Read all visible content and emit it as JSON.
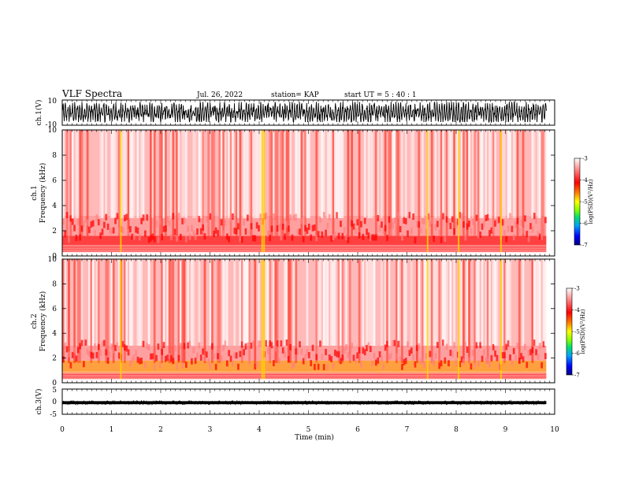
{
  "header": {
    "title": "VLF Spectra",
    "date": "Jul. 26, 2022",
    "station": "station= KAP",
    "start": "start UT =  5 : 40 : 1"
  },
  "colors": {
    "spectrogram_background": "#ffffff",
    "spectrogram_dominant": "#ff2a1a",
    "waveform_trace": "#000000",
    "colorbar_stops": [
      "#000080",
      "#0000ff",
      "#00a0ff",
      "#00e070",
      "#80ff00",
      "#ffff00",
      "#ff8000",
      "#ff0000",
      "#ff8080",
      "#ffffff"
    ]
  },
  "chart_data": [
    {
      "panel": "ch1-waveform",
      "type": "line",
      "ylabel": "ch.1(V)",
      "ylim": [
        -10,
        10
      ],
      "yticks": [
        "10",
        "-10"
      ],
      "xlim": [
        0,
        10
      ],
      "trace_extent_min": [
        0,
        9.83
      ],
      "description_of_values": "dense oscillation mostly between about -7 V and +8 V"
    },
    {
      "panel": "ch1-spectrogram",
      "type": "heatmap",
      "ylabel": "ch.1\nFrequency (kHz)",
      "ylim": [
        0,
        10
      ],
      "yticks": [
        "0",
        "2",
        "4",
        "6",
        "8",
        "10"
      ],
      "xlim": [
        0,
        10
      ],
      "data_extent_min": [
        0,
        9.83
      ],
      "colorbar": {
        "label": "log(PSD)(V²/Hz)",
        "range": [
          -7,
          -3
        ],
        "ticks": [
          "-3",
          "-4",
          "-5",
          "-6",
          "-7"
        ]
      },
      "bands": [
        {
          "freq_khz": [
            0.3,
            1.0
          ],
          "log_psd": -4.3
        },
        {
          "freq_khz": [
            1.0,
            1.6
          ],
          "log_psd": -4.6
        },
        {
          "freq_khz": [
            1.6,
            3.2
          ],
          "log_psd": -4.0
        },
        {
          "freq_khz": [
            3.2,
            10.0
          ],
          "log_psd": -3.6
        }
      ],
      "bright_vertical_events_min": [
        1.19,
        4.06,
        4.1,
        7.42,
        8.05,
        8.91
      ]
    },
    {
      "panel": "ch2-spectrogram",
      "type": "heatmap",
      "ylabel": "ch.2\nFrequency (kHz)",
      "ylim": [
        0,
        10
      ],
      "yticks": [
        "0",
        "2",
        "4",
        "6",
        "8",
        "10"
      ],
      "xlim": [
        0,
        10
      ],
      "data_extent_min": [
        0,
        9.83
      ],
      "colorbar": {
        "label": "log(PSD)(V²/Hz)",
        "range": [
          -7,
          -3
        ],
        "ticks": [
          "-3",
          "-4",
          "-5",
          "-6",
          "-7"
        ]
      },
      "bands": [
        {
          "freq_khz": [
            0.3,
            0.8
          ],
          "log_psd": -4.3
        },
        {
          "freq_khz": [
            0.8,
            1.8
          ],
          "log_psd": -4.7
        },
        {
          "freq_khz": [
            1.8,
            3.0
          ],
          "log_psd": -4.0
        },
        {
          "freq_khz": [
            3.0,
            10.0
          ],
          "log_psd": -3.6
        }
      ],
      "bright_vertical_events_min": [
        1.19,
        4.06,
        4.1,
        7.42,
        8.05,
        8.91
      ]
    },
    {
      "panel": "ch3-waveform",
      "type": "line",
      "ylabel": "ch.3(V)",
      "ylim": [
        -5,
        5
      ],
      "yticks": [
        "5",
        "0",
        "-5"
      ],
      "xlim": [
        0,
        10
      ],
      "xlabel": "Time (min)",
      "xticks": [
        "0",
        "1",
        "2",
        "3",
        "4",
        "5",
        "6",
        "7",
        "8",
        "9",
        "10"
      ],
      "trace_extent_min": [
        0,
        9.83
      ],
      "trace_band_V": [
        -1.0,
        0.2
      ]
    }
  ]
}
